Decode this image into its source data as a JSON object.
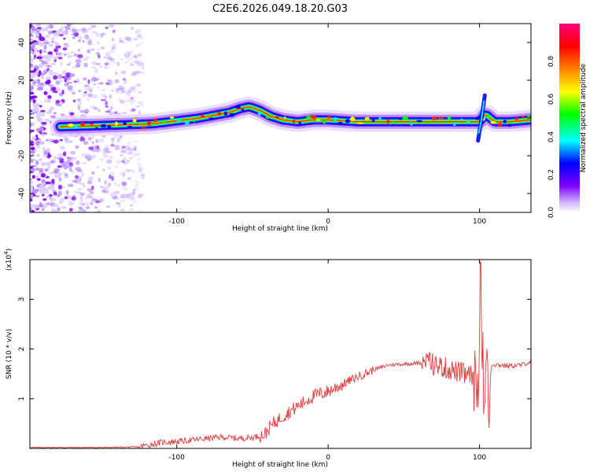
{
  "chart_data": [
    {
      "type": "heatmap",
      "title": "C2E6.2026.049.18.20.G03",
      "xlabel": "Height of straight line (km)",
      "ylabel": "Frequency (Hz)",
      "xlim": [
        -197,
        134
      ],
      "ylim": [
        -50,
        50
      ],
      "xticks": [
        -100,
        0,
        100
      ],
      "yticks": [
        -40,
        -20,
        0,
        20,
        40
      ],
      "colorbar": {
        "label": "Normalized spectral amplitude",
        "range": [
          0,
          1
        ],
        "ticks": [
          "0.0",
          "0.2",
          "0.4",
          "0.6",
          "0.8"
        ],
        "tick_values": [
          0.0,
          0.2,
          0.4,
          0.6,
          0.8
        ],
        "colors": [
          "#ffffff",
          "#7f00ff",
          "#0000ff",
          "#00ffff",
          "#00ff00",
          "#ffff00",
          "#ff7f00",
          "#ff0000",
          "#ff007f"
        ]
      },
      "ridge_frequency": {
        "x": [
          -197,
          -170,
          -150,
          -130,
          -115,
          -100,
          -85,
          -75,
          -65,
          -58,
          -52,
          -45,
          -38,
          -30,
          -20,
          -10,
          0,
          20,
          50,
          80,
          95,
          100,
          104,
          110,
          120,
          134
        ],
        "y": [
          -5,
          -4.5,
          -4,
          -3.5,
          -3,
          -1.5,
          0,
          1.5,
          3,
          5,
          6,
          4,
          1,
          -1,
          -2,
          -1,
          -1,
          -2,
          -2,
          -2,
          -2,
          -2,
          2,
          -2,
          -2,
          -1
        ]
      }
    },
    {
      "type": "line",
      "xlabel": "Height of straight line (km)",
      "ylabel": "SNR (10 * v/v)",
      "yscale_label": "(x10",
      "yscale_exponent": "4",
      "xlim": [
        -197,
        134
      ],
      "ylim": [
        0,
        3.8
      ],
      "xticks": [
        -100,
        0,
        100
      ],
      "yticks": [
        1,
        2,
        3
      ],
      "series": [
        {
          "name": "SNR",
          "color": "#e8393a",
          "x": [
            -197,
            -150,
            -125,
            -110,
            -95,
            -80,
            -70,
            -60,
            -50,
            -42,
            -38,
            -30,
            -20,
            -10,
            0,
            10,
            20,
            30,
            40,
            50,
            60,
            65,
            75,
            85,
            95,
            99,
            101,
            103,
            105,
            106,
            108,
            112,
            120,
            128,
            134
          ],
          "y": [
            0.02,
            0.02,
            0.03,
            0.12,
            0.15,
            0.2,
            0.23,
            0.2,
            0.22,
            0.28,
            0.45,
            0.65,
            0.85,
            1.05,
            1.15,
            1.3,
            1.45,
            1.58,
            1.68,
            1.7,
            1.72,
            1.7,
            1.6,
            1.5,
            1.4,
            1.0,
            2.9,
            0.8,
            2.4,
            0.2,
            1.7,
            1.68,
            1.66,
            1.68,
            1.75
          ]
        }
      ]
    }
  ]
}
